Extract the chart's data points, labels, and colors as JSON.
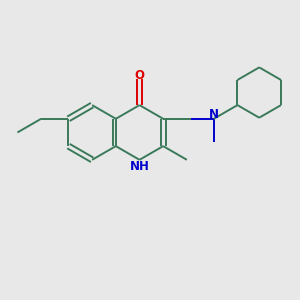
{
  "bg_color": "#e8e8e8",
  "bond_color": "#3a7a5a",
  "n_color": "#0000cc",
  "o_color": "#dd0000",
  "line_width": 1.4,
  "font_size": 8.5,
  "figsize": [
    3.0,
    3.0
  ],
  "dpi": 100,
  "xlim": [
    0,
    10
  ],
  "ylim": [
    0,
    10
  ]
}
